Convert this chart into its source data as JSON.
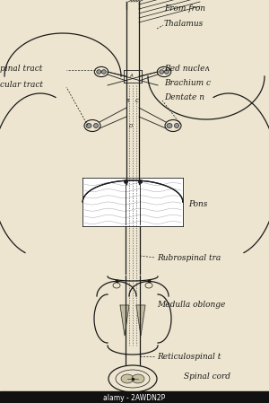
{
  "bg_color": "#ede5cf",
  "line_color": "#1a1a1a",
  "label_color": "#1a1a1a",
  "labels": {
    "from_front": "From fron",
    "thalamus": "Thalamus",
    "spinal_tract": "pinal tract",
    "red_nucleus": "Red nucleʌ",
    "ocular_tract": "cular tract",
    "brachium": "Brachium c",
    "dentate": "Dentate n",
    "pons": "Pons",
    "rubrospinal": "Rubrospinal tra",
    "medulla": "Medulla oblonge",
    "reticulospinal": "Reticulospinal t",
    "spinal_cord": "Spinal cord"
  },
  "watermark": "alamy - 2AWDN2P"
}
